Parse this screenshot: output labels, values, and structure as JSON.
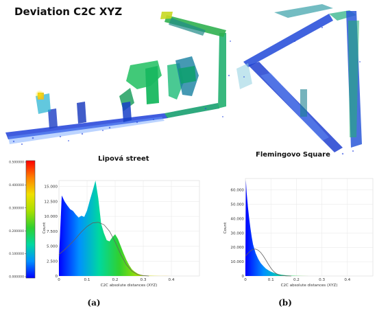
{
  "figure": {
    "title": "Deviation C2C XYZ",
    "left_site": "Lipová street",
    "right_site": "Flemingovo Square",
    "panel_a": "(a)",
    "panel_b": "(b)",
    "colorbar": {
      "ticks": [
        "0.500000",
        "0.400000",
        "0.300000",
        "0.200000",
        "0.100000",
        "0.000000"
      ],
      "colors": [
        "#0000ff",
        "#0090ff",
        "#00d8a0",
        "#30d030",
        "#a8e000",
        "#f0e000",
        "#ff8000",
        "#ff0000"
      ]
    }
  },
  "chart_data": [
    {
      "type": "area",
      "panel": "(a)",
      "xlabel": "C2C absolute distances (XYZ)",
      "ylabel": "Count",
      "x_ticks": [
        "0",
        "0.1",
        "0.2",
        "0.3",
        "0.4"
      ],
      "y_ticks": [
        "0",
        "2.500",
        "5.000",
        "7.500",
        "10.000",
        "12.500",
        "15.000"
      ],
      "xlim": [
        0,
        0.5
      ],
      "ylim": [
        0,
        16000
      ],
      "histogram": {
        "x": [
          0.0,
          0.01,
          0.02,
          0.03,
          0.04,
          0.05,
          0.06,
          0.07,
          0.08,
          0.09,
          0.1,
          0.11,
          0.12,
          0.13,
          0.14,
          0.15,
          0.16,
          0.17,
          0.18,
          0.19,
          0.2,
          0.21,
          0.22,
          0.23,
          0.24,
          0.25,
          0.26,
          0.27,
          0.28,
          0.29,
          0.3,
          0.32,
          0.34,
          0.36,
          0.38,
          0.4,
          0.45,
          0.5
        ],
        "counts": [
          3000,
          13500,
          12500,
          11800,
          11200,
          10900,
          10300,
          9800,
          10100,
          9900,
          11000,
          12700,
          14300,
          16000,
          13000,
          8800,
          7200,
          6000,
          5800,
          6500,
          7000,
          6200,
          5000,
          3800,
          2700,
          1800,
          1100,
          700,
          400,
          220,
          120,
          60,
          35,
          20,
          12,
          6,
          2,
          0
        ]
      },
      "fit_curve": {
        "x": [
          0.0,
          0.02,
          0.04,
          0.06,
          0.08,
          0.1,
          0.12,
          0.14,
          0.16,
          0.18,
          0.2,
          0.22,
          0.24,
          0.26,
          0.28,
          0.3,
          0.32
        ],
        "y": [
          3600,
          4400,
          5300,
          6300,
          7400,
          8300,
          8900,
          9000,
          8600,
          7500,
          5700,
          3600,
          1900,
          800,
          250,
          60,
          0
        ]
      }
    },
    {
      "type": "area",
      "panel": "(b)",
      "xlabel": "C2C absolute distances (XYZ)",
      "ylabel": "Count",
      "x_ticks": [
        "0",
        "0.1",
        "0.2",
        "0.3",
        "0.4"
      ],
      "y_ticks": [
        "0",
        "10.000",
        "20.000",
        "30.000",
        "40.000",
        "50.000",
        "60.000"
      ],
      "xlim": [
        0,
        0.5
      ],
      "ylim": [
        0,
        68000
      ],
      "histogram": {
        "x": [
          0.0,
          0.002,
          0.005,
          0.01,
          0.015,
          0.02,
          0.025,
          0.03,
          0.04,
          0.05,
          0.06,
          0.07,
          0.08,
          0.09,
          0.1,
          0.12,
          0.14,
          0.16,
          0.18,
          0.2,
          0.22,
          0.25,
          0.3,
          0.35,
          0.4,
          0.45,
          0.5
        ],
        "counts": [
          5000,
          67000,
          58000,
          48000,
          40000,
          33000,
          27000,
          22000,
          16000,
          12000,
          9000,
          7000,
          5200,
          4000,
          3000,
          1700,
          900,
          500,
          260,
          130,
          70,
          30,
          10,
          4,
          2,
          1,
          0
        ]
      },
      "fit_curve": {
        "x": [
          0.0,
          0.01,
          0.02,
          0.03,
          0.04,
          0.05,
          0.06,
          0.07,
          0.08,
          0.09,
          0.1,
          0.11,
          0.12,
          0.13,
          0.14,
          0.16,
          0.18
        ],
        "y": [
          13800,
          15800,
          17500,
          18600,
          18800,
          18000,
          16400,
          14000,
          11200,
          8200,
          5500,
          3300,
          1800,
          900,
          400,
          80,
          0
        ]
      }
    }
  ]
}
